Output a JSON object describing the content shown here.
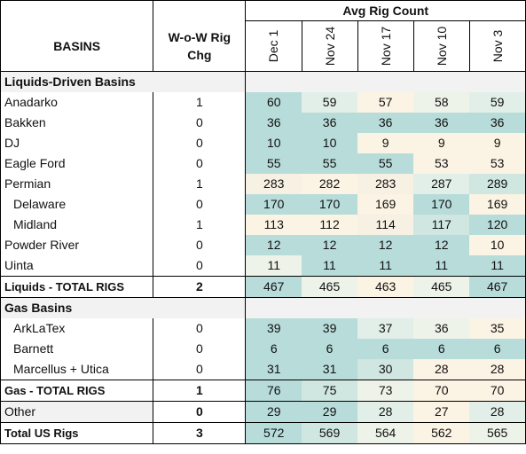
{
  "header": {
    "group_label": "Avg Rig Count",
    "basins_label": "BASINS",
    "chg_label_line1": "W-o-W Rig",
    "chg_label_line2": "Chg",
    "dates": [
      "Dec 1",
      "Nov 24",
      "Nov 17",
      "Nov 10",
      "Nov 3"
    ]
  },
  "liquids": {
    "section_label": "Liquids-Driven Basins",
    "rows": [
      {
        "name": "Anadarko",
        "chg": "1",
        "values": [
          "60",
          "59",
          "57",
          "58",
          "59"
        ],
        "sub": false
      },
      {
        "name": "Bakken",
        "chg": "0",
        "values": [
          "36",
          "36",
          "36",
          "36",
          "36"
        ],
        "sub": false
      },
      {
        "name": "DJ",
        "chg": "0",
        "values": [
          "10",
          "10",
          "9",
          "9",
          "9"
        ],
        "sub": false
      },
      {
        "name": "Eagle Ford",
        "chg": "0",
        "values": [
          "55",
          "55",
          "55",
          "53",
          "53"
        ],
        "sub": false
      },
      {
        "name": "Permian",
        "chg": "1",
        "values": [
          "283",
          "282",
          "283",
          "287",
          "289"
        ],
        "sub": false
      },
      {
        "name": "Delaware",
        "chg": "0",
        "values": [
          "170",
          "170",
          "169",
          "170",
          "169"
        ],
        "sub": true
      },
      {
        "name": "Midland",
        "chg": "1",
        "values": [
          "113",
          "112",
          "114",
          "117",
          "120"
        ],
        "sub": true
      },
      {
        "name": "Powder River",
        "chg": "0",
        "values": [
          "12",
          "12",
          "12",
          "12",
          "10"
        ],
        "sub": false
      },
      {
        "name": "Uinta",
        "chg": "0",
        "values": [
          "11",
          "11",
          "11",
          "11",
          "11"
        ],
        "sub": false
      }
    ],
    "total": {
      "name": "Liquids - TOTAL RIGS",
      "chg": "2",
      "values": [
        "467",
        "465",
        "463",
        "465",
        "467"
      ]
    }
  },
  "gas": {
    "section_label": "Gas Basins",
    "rows": [
      {
        "name": "ArkLaTex",
        "chg": "0",
        "values": [
          "39",
          "39",
          "37",
          "36",
          "35"
        ],
        "sub": true
      },
      {
        "name": "Barnett",
        "chg": "0",
        "values": [
          "6",
          "6",
          "6",
          "6",
          "6"
        ],
        "sub": true
      },
      {
        "name": "Marcellus + Utica",
        "chg": "0",
        "values": [
          "31",
          "31",
          "30",
          "28",
          "28"
        ],
        "sub": true
      }
    ],
    "total": {
      "name": "Gas - TOTAL RIGS",
      "chg": "1",
      "values": [
        "76",
        "75",
        "73",
        "70",
        "70"
      ]
    }
  },
  "other": {
    "name": "Other",
    "chg": "0",
    "values": [
      "29",
      "29",
      "28",
      "27",
      "28"
    ]
  },
  "total_us": {
    "name": "Total US Rigs",
    "chg": "3",
    "values": [
      "572",
      "569",
      "564",
      "562",
      "565"
    ]
  },
  "colors": {
    "teal_strong": "#b7dcd9",
    "teal_mid": "#cfe6e1",
    "teal_light": "#e1efe8",
    "neutral": "#eef3ea",
    "cream": "#fbf3e3",
    "section_bg": "#f2f2f2"
  },
  "cell_colors": {
    "liquids": [
      [
        "#b7dcd9",
        "#e1efe8",
        "#fbf3e3",
        "#eef3ea",
        "#e1efe8"
      ],
      [
        "#b7dcd9",
        "#b7dcd9",
        "#b7dcd9",
        "#b7dcd9",
        "#b7dcd9"
      ],
      [
        "#b7dcd9",
        "#b7dcd9",
        "#fbf3e3",
        "#fbf3e3",
        "#fbf3e3"
      ],
      [
        "#b7dcd9",
        "#b7dcd9",
        "#b7dcd9",
        "#fbf3e3",
        "#fbf3e3"
      ],
      [
        "#f7f1e3",
        "#fbf3e3",
        "#f7f1e3",
        "#e1efe8",
        "#cfe6e1"
      ],
      [
        "#b7dcd9",
        "#b7dcd9",
        "#fbf3e3",
        "#b7dcd9",
        "#fbf3e3"
      ],
      [
        "#fbf3e3",
        "#fbf3e3",
        "#f7f1e3",
        "#cfe6e1",
        "#b7dcd9"
      ],
      [
        "#b7dcd9",
        "#b7dcd9",
        "#b7dcd9",
        "#b7dcd9",
        "#fbf3e3"
      ],
      [
        "#eef3ea",
        "#b7dcd9",
        "#b7dcd9",
        "#b7dcd9",
        "#b7dcd9"
      ]
    ],
    "liquids_total": [
      "#b7dcd9",
      "#eef3ea",
      "#fbf3e3",
      "#eef3ea",
      "#b7dcd9"
    ],
    "gas": [
      [
        "#b7dcd9",
        "#b7dcd9",
        "#e1efe8",
        "#eef3ea",
        "#fbf3e3"
      ],
      [
        "#b7dcd9",
        "#b7dcd9",
        "#b7dcd9",
        "#b7dcd9",
        "#b7dcd9"
      ],
      [
        "#b7dcd9",
        "#b7dcd9",
        "#cfe6e1",
        "#fbf3e3",
        "#fbf3e3"
      ]
    ],
    "gas_total": [
      "#b7dcd9",
      "#cfe6e1",
      "#eef3ea",
      "#fbf3e3",
      "#fbf3e3"
    ],
    "other": [
      "#b7dcd9",
      "#b7dcd9",
      "#e1efe8",
      "#fbf3e3",
      "#e1efe8"
    ],
    "total_us": [
      "#b7dcd9",
      "#cfe6e1",
      "#eef3ea",
      "#fbf3e3",
      "#eef3ea"
    ]
  }
}
